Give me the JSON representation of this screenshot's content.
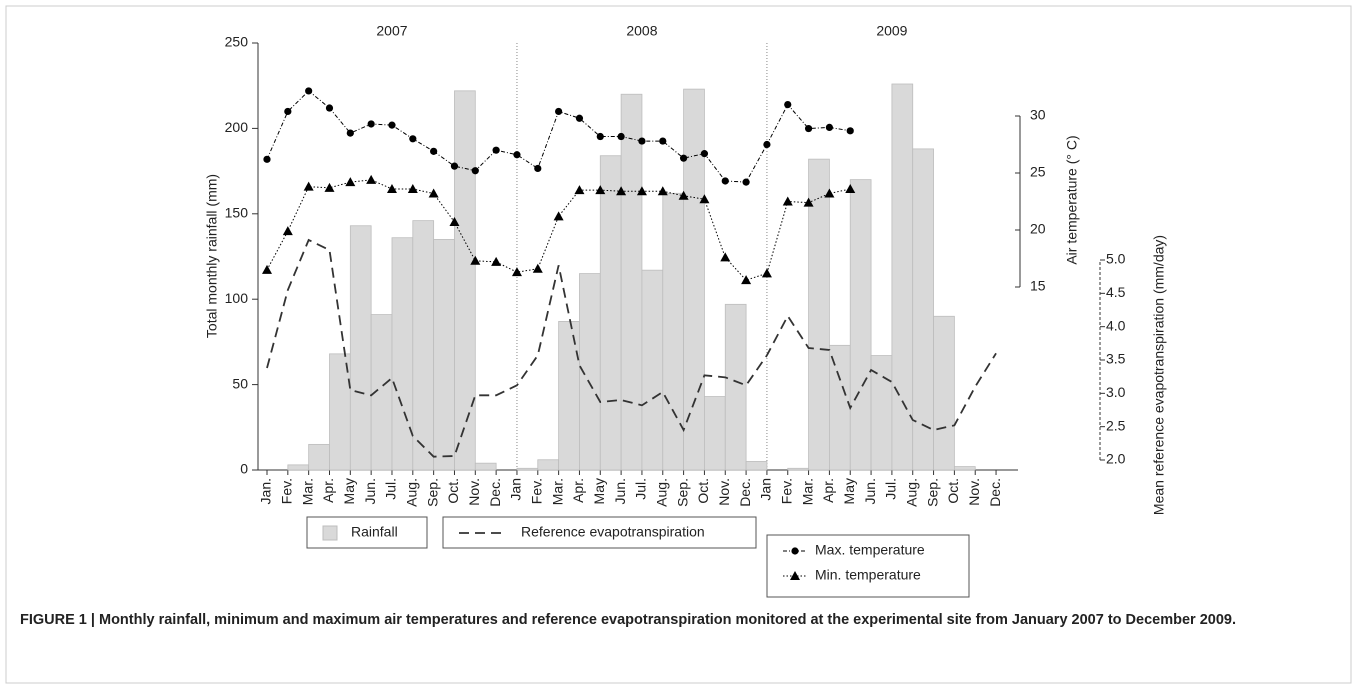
{
  "chart_data": {
    "type": "bar-line",
    "annotations": [
      "2007",
      "2008",
      "2009"
    ],
    "categories": [
      "Jan.",
      "Fev.",
      "Mar.",
      "Apr.",
      "May",
      "Jun.",
      "Jul.",
      "Aug.",
      "Sep.",
      "Oct.",
      "Nov.",
      "Dec.",
      "Jan",
      "Fev.",
      "Mar.",
      "Apr.",
      "May",
      "Jun.",
      "Jul.",
      "Aug.",
      "Sep.",
      "Oct.",
      "Nov.",
      "Dec.",
      "Jan",
      "Fev.",
      "Mar.",
      "Apr.",
      "May",
      "Jun.",
      "Jul.",
      "Aug.",
      "Sep.",
      "Oct.",
      "Nov.",
      "Dec."
    ],
    "ylabel": "Total monthly rainfall (mm)",
    "ylim": [
      0,
      250
    ],
    "yticks": [
      0,
      50,
      100,
      150,
      200,
      250
    ],
    "y2label": "Air temperature (° C)",
    "y2lim": [
      15,
      30
    ],
    "y2ticks": [
      15,
      20,
      25,
      30
    ],
    "y3label": "Mean reference evapotranspiration (mm/day)",
    "y3lim": [
      2.0,
      5.0
    ],
    "y3ticks": [
      {
        "value": 2.0,
        "label": "2.0"
      },
      2.5,
      {
        "value": 3.0,
        "label": "3.0"
      },
      3.5,
      {
        "value": 4.0,
        "label": "4.0"
      },
      4.5,
      {
        "value": 5.0,
        "label": "5.0"
      }
    ],
    "series": [
      {
        "name": "Rainfall",
        "type": "bar",
        "axis": "y",
        "color": "#d9d9d9",
        "values": [
          0,
          3,
          15,
          68,
          143,
          91,
          136,
          146,
          135,
          222,
          4,
          0,
          1,
          6,
          87,
          115,
          184,
          220,
          117,
          162,
          223,
          43,
          97,
          5,
          0,
          1,
          182,
          73,
          170,
          67,
          226,
          188,
          90,
          2,
          0,
          0
        ]
      },
      {
        "name": "Reference evapotranspiration",
        "type": "line",
        "axis": "y3",
        "color": "#333333",
        "line_style": "dashed",
        "values": [
          3.38,
          4.55,
          5.3,
          5.15,
          3.05,
          2.97,
          3.23,
          2.36,
          2.05,
          2.06,
          2.97,
          2.97,
          3.12,
          3.57,
          4.92,
          3.42,
          2.87,
          2.9,
          2.82,
          3.02,
          2.45,
          3.27,
          3.24,
          3.12,
          3.57,
          4.16,
          3.68,
          3.65,
          2.78,
          3.35,
          3.17,
          2.6,
          2.45,
          2.52,
          3.1,
          3.6
        ]
      },
      {
        "name": "Max. temperature",
        "type": "line",
        "axis": "y2",
        "color": "#000000",
        "line_style": "dash-dot",
        "marker": "circle",
        "values": [
          26.2,
          30.4,
          32.2,
          30.7,
          28.5,
          29.3,
          29.2,
          28.0,
          26.9,
          25.6,
          25.2,
          27.0,
          26.6,
          25.4,
          30.4,
          29.8,
          28.2,
          28.2,
          27.8,
          27.8,
          26.3,
          26.7,
          24.3,
          24.2,
          27.5,
          31.0,
          28.9,
          29.0,
          28.7,
          null,
          null,
          null,
          null,
          null,
          null,
          null
        ]
      },
      {
        "name": "Min. temperature",
        "type": "line",
        "axis": "y2",
        "color": "#000000",
        "line_style": "dotted",
        "marker": "triangle",
        "values": [
          16.5,
          19.9,
          23.8,
          23.7,
          24.2,
          24.4,
          23.6,
          23.6,
          23.2,
          20.7,
          17.3,
          17.2,
          16.3,
          16.6,
          21.2,
          23.5,
          23.5,
          23.4,
          23.4,
          23.4,
          23.0,
          22.7,
          17.6,
          15.6,
          16.2,
          22.5,
          22.4,
          23.2,
          23.6,
          null,
          null,
          null,
          null,
          null,
          null,
          null
        ]
      }
    ],
    "caption": "FIGURE 1 | Monthly rainfall, minimum and maximum air temperatures and reference evapotranspiration monitored at the experimental site from January 2007 to December 2009."
  }
}
